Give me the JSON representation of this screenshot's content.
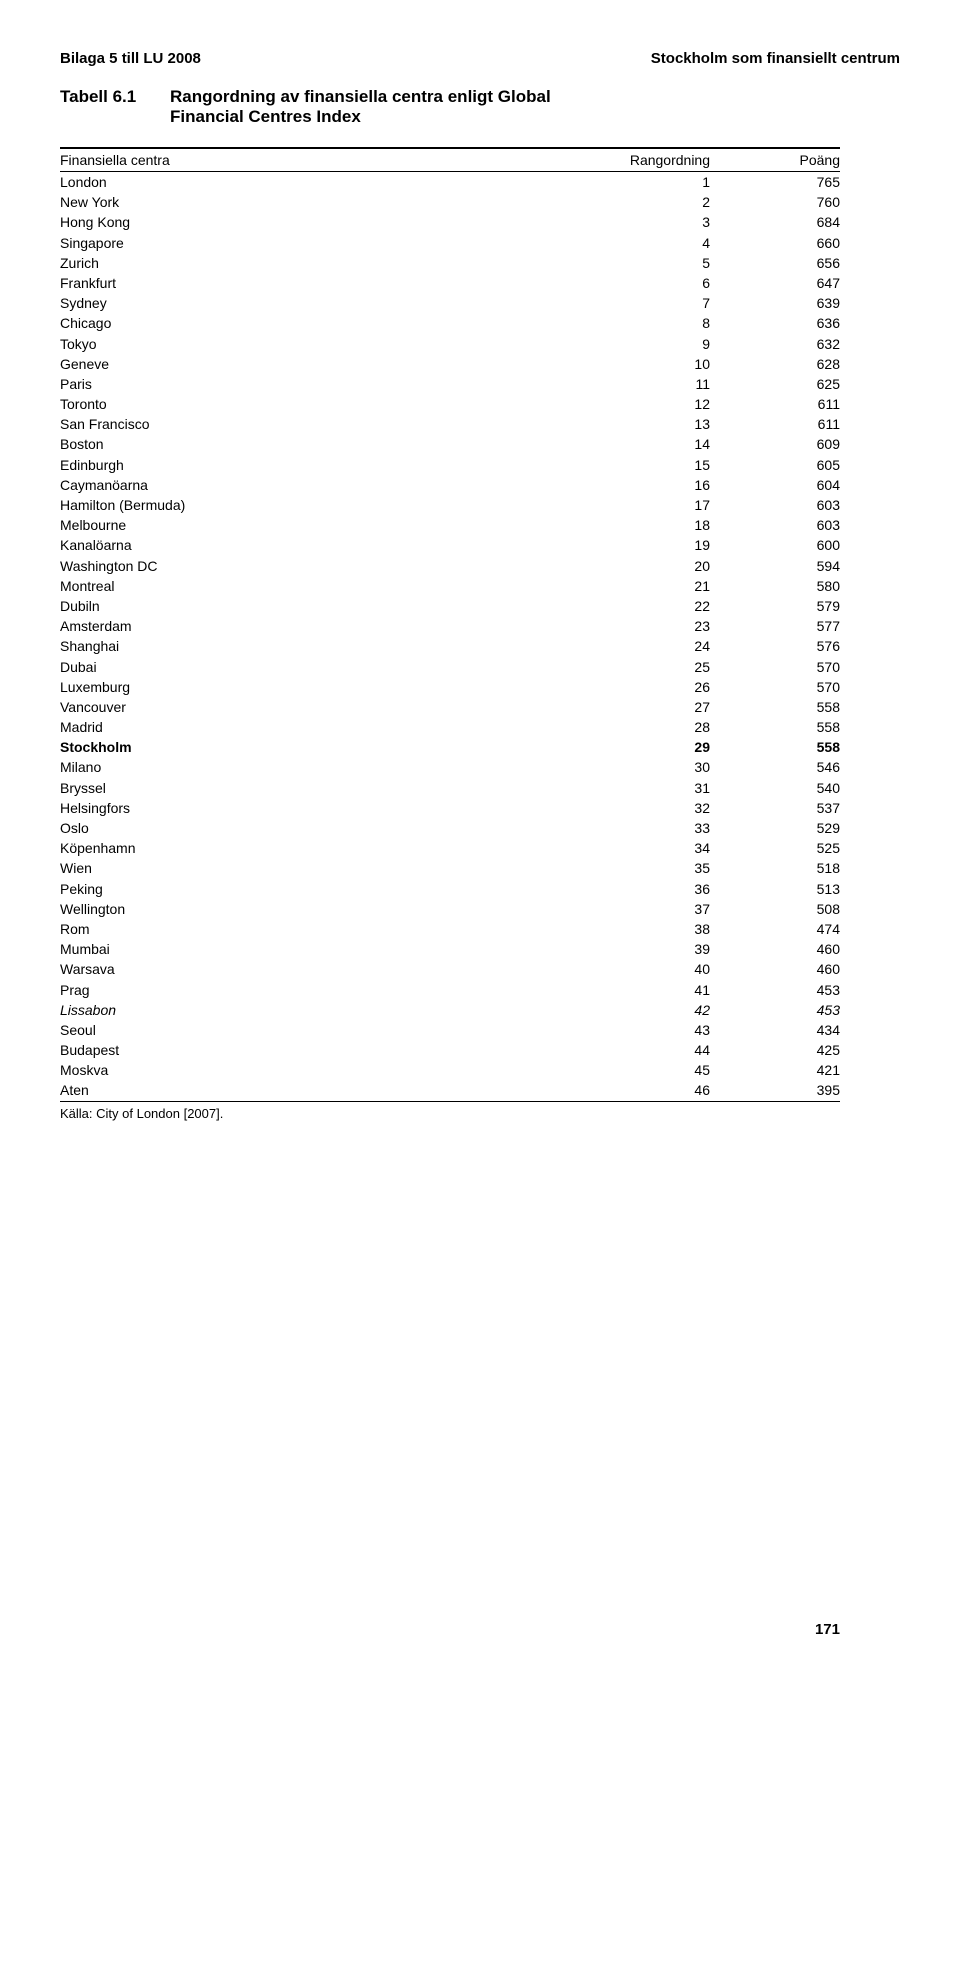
{
  "header": {
    "left": "Bilaga 5 till LU 2008",
    "right": "Stockholm som finansiellt centrum"
  },
  "tabell": {
    "number": "Tabell 6.1",
    "title_line1": "Rangordning av finansiella centra enligt Global",
    "title_line2": "Financial Centres Index"
  },
  "columns": {
    "name": "Finansiella centra",
    "rank": "Rangordning",
    "score": "Poäng"
  },
  "rows": [
    {
      "name": "London",
      "rank": 1,
      "score": 765
    },
    {
      "name": "New York",
      "rank": 2,
      "score": 760
    },
    {
      "name": "Hong Kong",
      "rank": 3,
      "score": 684
    },
    {
      "name": "Singapore",
      "rank": 4,
      "score": 660
    },
    {
      "name": "Zurich",
      "rank": 5,
      "score": 656
    },
    {
      "name": "Frankfurt",
      "rank": 6,
      "score": 647
    },
    {
      "name": "Sydney",
      "rank": 7,
      "score": 639
    },
    {
      "name": "Chicago",
      "rank": 8,
      "score": 636
    },
    {
      "name": "Tokyo",
      "rank": 9,
      "score": 632
    },
    {
      "name": "Geneve",
      "rank": 10,
      "score": 628
    },
    {
      "name": "Paris",
      "rank": 11,
      "score": 625
    },
    {
      "name": "Toronto",
      "rank": 12,
      "score": 611
    },
    {
      "name": "San Francisco",
      "rank": 13,
      "score": 611
    },
    {
      "name": "Boston",
      "rank": 14,
      "score": 609
    },
    {
      "name": "Edinburgh",
      "rank": 15,
      "score": 605
    },
    {
      "name": "Caymanöarna",
      "rank": 16,
      "score": 604
    },
    {
      "name": "Hamilton (Bermuda)",
      "rank": 17,
      "score": 603
    },
    {
      "name": "Melbourne",
      "rank": 18,
      "score": 603
    },
    {
      "name": "Kanalöarna",
      "rank": 19,
      "score": 600
    },
    {
      "name": "Washington DC",
      "rank": 20,
      "score": 594
    },
    {
      "name": "Montreal",
      "rank": 21,
      "score": 580
    },
    {
      "name": "Dubiln",
      "rank": 22,
      "score": 579
    },
    {
      "name": "Amsterdam",
      "rank": 23,
      "score": 577
    },
    {
      "name": "Shanghai",
      "rank": 24,
      "score": 576
    },
    {
      "name": "Dubai",
      "rank": 25,
      "score": 570
    },
    {
      "name": "Luxemburg",
      "rank": 26,
      "score": 570
    },
    {
      "name": "Vancouver",
      "rank": 27,
      "score": 558
    },
    {
      "name": "Madrid",
      "rank": 28,
      "score": 558
    },
    {
      "name": "Stockholm",
      "rank": 29,
      "score": 558,
      "bold": true
    },
    {
      "name": "Milano",
      "rank": 30,
      "score": 546
    },
    {
      "name": "Bryssel",
      "rank": 31,
      "score": 540
    },
    {
      "name": "Helsingfors",
      "rank": 32,
      "score": 537
    },
    {
      "name": "Oslo",
      "rank": 33,
      "score": 529
    },
    {
      "name": "Köpenhamn",
      "rank": 34,
      "score": 525
    },
    {
      "name": "Wien",
      "rank": 35,
      "score": 518
    },
    {
      "name": "Peking",
      "rank": 36,
      "score": 513
    },
    {
      "name": "Wellington",
      "rank": 37,
      "score": 508
    },
    {
      "name": "Rom",
      "rank": 38,
      "score": 474
    },
    {
      "name": "Mumbai",
      "rank": 39,
      "score": 460
    },
    {
      "name": "Warsava",
      "rank": 40,
      "score": 460
    },
    {
      "name": "Prag",
      "rank": 41,
      "score": 453
    },
    {
      "name": "Lissabon",
      "rank": 42,
      "score": 453,
      "italic": true
    },
    {
      "name": "Seoul",
      "rank": 43,
      "score": 434
    },
    {
      "name": "Budapest",
      "rank": 44,
      "score": 425
    },
    {
      "name": "Moskva",
      "rank": 45,
      "score": 421
    },
    {
      "name": "Aten",
      "rank": 46,
      "score": 395
    }
  ],
  "source": "Källa: City of London [2007].",
  "page_number": "171"
}
